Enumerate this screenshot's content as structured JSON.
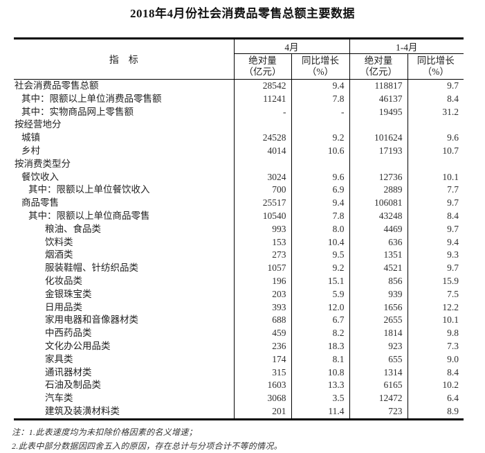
{
  "title": "2018年4月份社会消费品零售总额主要数据",
  "table": {
    "header": {
      "indicator_label": "指　标",
      "groups": [
        {
          "label": "4月"
        },
        {
          "label": "1-4月"
        }
      ],
      "sub_columns": [
        {
          "line1": "绝对量",
          "line2": "（亿元）"
        },
        {
          "line1": "同比增长",
          "line2": "（%）"
        },
        {
          "line1": "绝对量",
          "line2": "（亿元）"
        },
        {
          "line1": "同比增长",
          "line2": "（%）"
        }
      ]
    },
    "rows": [
      {
        "label": "社会消费品零售总额",
        "indent": 0,
        "values": [
          "28542",
          "9.4",
          "118817",
          "9.7"
        ]
      },
      {
        "label": "其中：限额以上单位消费品零售额",
        "indent": 1,
        "values": [
          "11241",
          "7.8",
          "46137",
          "8.4"
        ]
      },
      {
        "label": "其中：实物商品网上零售额",
        "indent": 1,
        "values": [
          "-",
          "-",
          "19495",
          "31.2"
        ]
      },
      {
        "label": "按经营地分",
        "indent": 0,
        "values": [
          "",
          "",
          "",
          ""
        ]
      },
      {
        "label": "城镇",
        "indent": 1,
        "values": [
          "24528",
          "9.2",
          "101624",
          "9.6"
        ]
      },
      {
        "label": "乡村",
        "indent": 1,
        "values": [
          "4014",
          "10.6",
          "17193",
          "10.7"
        ]
      },
      {
        "label": "按消费类型分",
        "indent": 0,
        "values": [
          "",
          "",
          "",
          ""
        ]
      },
      {
        "label": "餐饮收入",
        "indent": 1,
        "values": [
          "3024",
          "9.6",
          "12736",
          "10.1"
        ]
      },
      {
        "label": "其中：限额以上单位餐饮收入",
        "indent": 2,
        "values": [
          "700",
          "6.9",
          "2889",
          "7.7"
        ]
      },
      {
        "label": "商品零售",
        "indent": 1,
        "values": [
          "25517",
          "9.4",
          "106081",
          "9.7"
        ]
      },
      {
        "label": "其中：限额以上单位商品零售",
        "indent": 2,
        "values": [
          "10540",
          "7.8",
          "43248",
          "8.4"
        ]
      },
      {
        "label": "粮油、食品类",
        "indent": 3,
        "values": [
          "993",
          "8.0",
          "4469",
          "9.7"
        ]
      },
      {
        "label": "饮料类",
        "indent": 3,
        "values": [
          "153",
          "10.4",
          "636",
          "9.4"
        ]
      },
      {
        "label": "烟酒类",
        "indent": 3,
        "values": [
          "273",
          "9.5",
          "1351",
          "9.3"
        ]
      },
      {
        "label": "服装鞋帽、针纺织品类",
        "indent": 3,
        "values": [
          "1057",
          "9.2",
          "4521",
          "9.7"
        ]
      },
      {
        "label": "化妆品类",
        "indent": 3,
        "values": [
          "196",
          "15.1",
          "856",
          "15.9"
        ]
      },
      {
        "label": "金银珠宝类",
        "indent": 3,
        "values": [
          "203",
          "5.9",
          "939",
          "7.5"
        ]
      },
      {
        "label": "日用品类",
        "indent": 3,
        "values": [
          "393",
          "12.0",
          "1656",
          "12.2"
        ]
      },
      {
        "label": "家用电器和音像器材类",
        "indent": 3,
        "values": [
          "688",
          "6.7",
          "2655",
          "10.1"
        ]
      },
      {
        "label": "中西药品类",
        "indent": 3,
        "values": [
          "459",
          "8.2",
          "1814",
          "9.8"
        ]
      },
      {
        "label": "文化办公用品类",
        "indent": 3,
        "values": [
          "236",
          "18.3",
          "923",
          "7.3"
        ]
      },
      {
        "label": "家具类",
        "indent": 3,
        "values": [
          "174",
          "8.1",
          "655",
          "9.0"
        ]
      },
      {
        "label": "通讯器材类",
        "indent": 3,
        "values": [
          "315",
          "10.8",
          "1314",
          "8.4"
        ]
      },
      {
        "label": "石油及制品类",
        "indent": 3,
        "values": [
          "1603",
          "13.3",
          "6165",
          "10.2"
        ]
      },
      {
        "label": "汽车类",
        "indent": 3,
        "values": [
          "3068",
          "3.5",
          "12472",
          "6.4"
        ]
      },
      {
        "label": "建筑及装潢材料类",
        "indent": 3,
        "values": [
          "201",
          "11.4",
          "723",
          "8.9"
        ]
      }
    ]
  },
  "notes": {
    "line1": "注：1.此表速度均为未扣除价格因素的名义增速；",
    "line2": "2.此表中部分数据因四舍五入的原因，存在总计与分项合计不等的情况。"
  }
}
